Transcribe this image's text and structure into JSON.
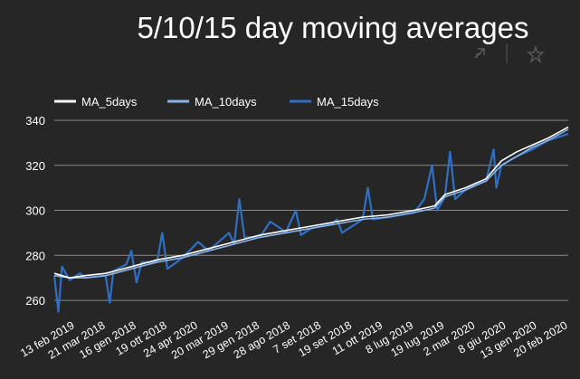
{
  "toolbar": {
    "icons": [
      "autoscale-icon",
      "pin-icon"
    ]
  },
  "chart_data": {
    "type": "line",
    "title": "5/10/15 day moving averages",
    "xlabel": "",
    "ylabel": "",
    "ylim": [
      252,
      342
    ],
    "yticks": [
      260,
      280,
      300,
      320,
      340
    ],
    "grid": true,
    "legend_position": "top-left",
    "x_tick_labels": [
      "13 feb 2019",
      "21 mar 2018",
      "16 gen 2018",
      "19 ott 2018",
      "24 apr 2020",
      "20 mar 2019",
      "29 gen 2018",
      "28 ago 2018",
      "7 set 2018",
      "19 set 2018",
      "11 ott 2019",
      "8 lug 2019",
      "19 lug 2019",
      "2 mar 2020",
      "8 giu 2020",
      "13 gen 2020",
      "20 feb 2020"
    ],
    "x_index_range": [
      0,
      1000
    ],
    "series": [
      {
        "name": "MA_5days",
        "color": "#ffffff",
        "points": [
          [
            0,
            272
          ],
          [
            30,
            270
          ],
          [
            60,
            271
          ],
          [
            100,
            272
          ],
          [
            150,
            275
          ],
          [
            200,
            278
          ],
          [
            250,
            280
          ],
          [
            300,
            283
          ],
          [
            350,
            286
          ],
          [
            400,
            289
          ],
          [
            450,
            291
          ],
          [
            500,
            293
          ],
          [
            550,
            295
          ],
          [
            600,
            297
          ],
          [
            650,
            298
          ],
          [
            700,
            300
          ],
          [
            740,
            302
          ],
          [
            760,
            307
          ],
          [
            800,
            310
          ],
          [
            840,
            314
          ],
          [
            870,
            322
          ],
          [
            900,
            326
          ],
          [
            930,
            329
          ],
          [
            960,
            332
          ],
          [
            1000,
            337
          ]
        ]
      },
      {
        "name": "MA_10days",
        "color": "#8ab4e8",
        "points": [
          [
            0,
            271
          ],
          [
            30,
            270
          ],
          [
            60,
            270
          ],
          [
            100,
            271
          ],
          [
            150,
            274
          ],
          [
            200,
            277
          ],
          [
            250,
            279
          ],
          [
            300,
            282
          ],
          [
            350,
            285
          ],
          [
            400,
            288
          ],
          [
            450,
            290
          ],
          [
            500,
            292
          ],
          [
            550,
            294
          ],
          [
            600,
            296
          ],
          [
            650,
            297
          ],
          [
            700,
            299
          ],
          [
            740,
            301
          ],
          [
            760,
            306
          ],
          [
            800,
            309
          ],
          [
            840,
            313
          ],
          [
            870,
            320
          ],
          [
            900,
            324
          ],
          [
            930,
            328
          ],
          [
            960,
            331
          ],
          [
            1000,
            336
          ]
        ]
      },
      {
        "name": "MA_15days",
        "color": "#2f6fc4",
        "points": [
          [
            0,
            271
          ],
          [
            8,
            255
          ],
          [
            15,
            275
          ],
          [
            30,
            269
          ],
          [
            50,
            272
          ],
          [
            60,
            270
          ],
          [
            100,
            271
          ],
          [
            108,
            259
          ],
          [
            115,
            273
          ],
          [
            140,
            276
          ],
          [
            150,
            282
          ],
          [
            160,
            268
          ],
          [
            170,
            277
          ],
          [
            200,
            277
          ],
          [
            210,
            290
          ],
          [
            220,
            274
          ],
          [
            250,
            279
          ],
          [
            280,
            286
          ],
          [
            300,
            282
          ],
          [
            340,
            290
          ],
          [
            350,
            285
          ],
          [
            360,
            305
          ],
          [
            370,
            288
          ],
          [
            400,
            288
          ],
          [
            420,
            295
          ],
          [
            440,
            292
          ],
          [
            450,
            290
          ],
          [
            470,
            300
          ],
          [
            480,
            289
          ],
          [
            500,
            292
          ],
          [
            540,
            294
          ],
          [
            550,
            296
          ],
          [
            560,
            290
          ],
          [
            600,
            296
          ],
          [
            610,
            310
          ],
          [
            620,
            296
          ],
          [
            650,
            297
          ],
          [
            700,
            299
          ],
          [
            720,
            305
          ],
          [
            735,
            320
          ],
          [
            745,
            300
          ],
          [
            760,
            306
          ],
          [
            770,
            326
          ],
          [
            780,
            305
          ],
          [
            800,
            309
          ],
          [
            820,
            312
          ],
          [
            840,
            313
          ],
          [
            855,
            327
          ],
          [
            860,
            310
          ],
          [
            870,
            320
          ],
          [
            900,
            324
          ],
          [
            930,
            327
          ],
          [
            960,
            331
          ],
          [
            1000,
            334
          ]
        ]
      }
    ]
  }
}
